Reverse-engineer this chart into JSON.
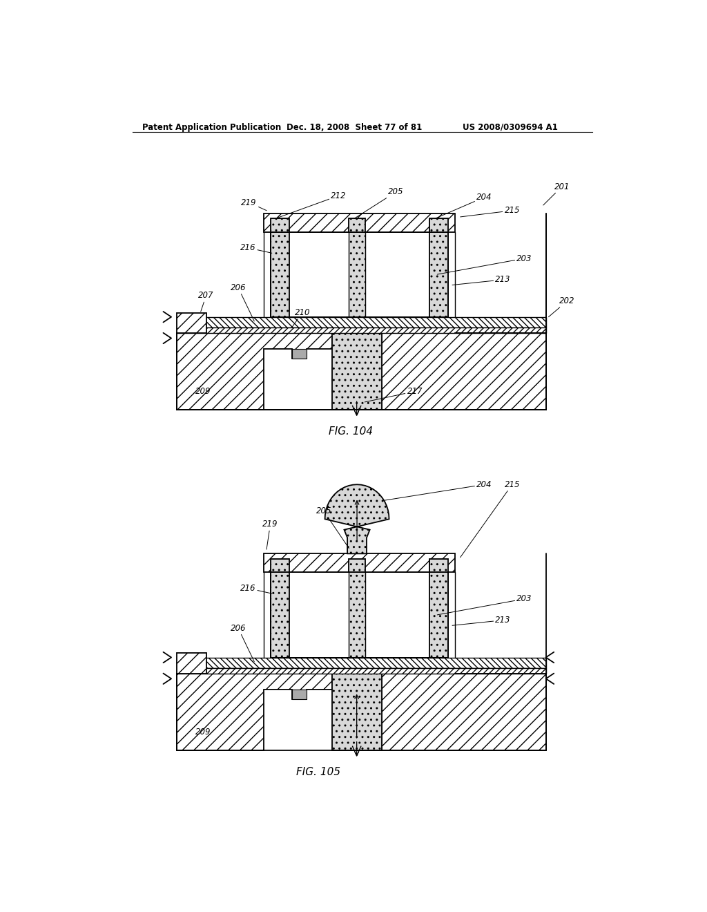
{
  "header_left": "Patent Application Publication",
  "header_mid": "Dec. 18, 2008  Sheet 77 of 81",
  "header_right": "US 2008/0309694 A1",
  "fig1_label": "FIG. 104",
  "fig2_label": "FIG. 105",
  "bg_color": "#ffffff",
  "line_color": "#000000"
}
